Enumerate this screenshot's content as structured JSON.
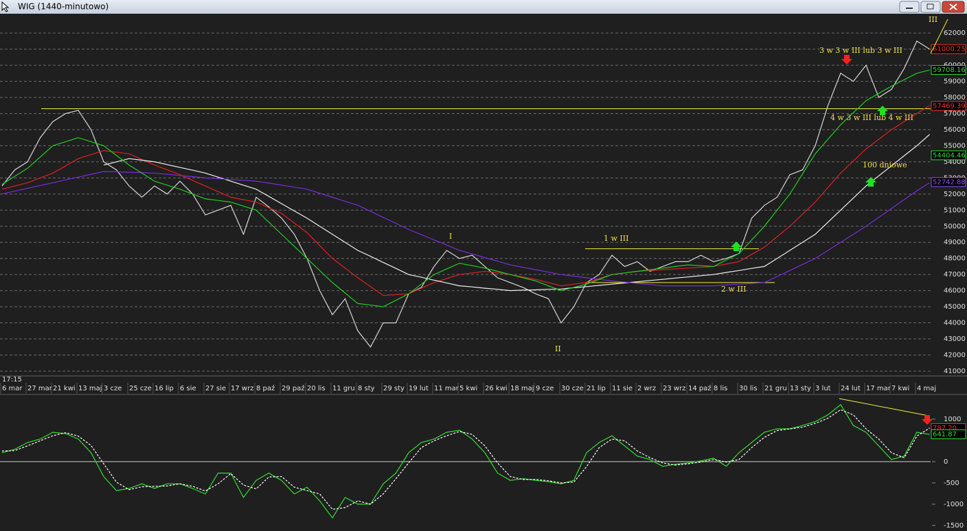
{
  "chart_data": [
    {
      "type": "line",
      "title": "WIG (1440-minutowo)",
      "time_label": "17:15",
      "categories": [
        "6 mar",
        null,
        "27 mar",
        null,
        "21 kwi",
        null,
        "13 maj",
        null,
        "3 cze",
        null,
        "25 cze",
        null,
        "16 lip",
        null,
        "6 sie",
        null,
        "27 sie",
        null,
        "17 wrz",
        null,
        "8 paź",
        null,
        "29 paź",
        null,
        "20 lis",
        null,
        "11 gru",
        null,
        "8 sty",
        null,
        "29 sty",
        null,
        "19 lut",
        null,
        "11 mar",
        null,
        "5 kwi",
        null,
        "26 kwi",
        null,
        "18 maj",
        null,
        "9 cze",
        null,
        "30 cze",
        null,
        "21 lip",
        null,
        "11 sie",
        null,
        "2 wrz",
        null,
        "23 wrz",
        null,
        "14 paź",
        null,
        "8 lis",
        null,
        "30 lis",
        null,
        "21 gru",
        null,
        "13 sty",
        null,
        "3 lut",
        null,
        "24 lut",
        null,
        "17 mar",
        null,
        "7 kwi",
        null,
        "4 maj",
        null
      ],
      "series": [
        {
          "color": "#d8d8d8",
          "values": [
            52500,
            53500,
            54000,
            55500,
            56500,
            57000,
            57200,
            56000,
            54000,
            53500,
            52500,
            51800,
            52500,
            52000,
            52800,
            52000,
            50700,
            51000,
            51300,
            49500,
            51800,
            51200,
            50500,
            49500,
            48000,
            46000,
            44500,
            45500,
            43500,
            42500,
            44000,
            44000,
            45800,
            46200,
            47500,
            48500,
            48000,
            48200,
            47500,
            46800,
            46500,
            46200,
            45800,
            45500,
            44000,
            45000,
            46500,
            47000,
            48200,
            47500,
            47800,
            47200,
            47500,
            47800,
            47800,
            48200,
            47800,
            48000,
            48300,
            50500,
            51300,
            51800,
            53200,
            53500,
            55000,
            57500,
            59500,
            59000,
            60000,
            58000,
            58500,
            59800,
            61500,
            61000
          ]
        },
        {
          "color": "#e02020",
          "values": [
            52300,
            52500,
            52700,
            53000,
            53300,
            53750,
            54200,
            54450,
            54700,
            54600,
            54500,
            54150,
            53800,
            53500,
            53200,
            52850,
            52500,
            52150,
            51800,
            51650,
            51500,
            51150,
            50800,
            50200,
            49600,
            48800,
            48000,
            47400,
            46800,
            46250,
            45700,
            45750,
            45800,
            46150,
            46500,
            46750,
            47000,
            47100,
            47200,
            47100,
            47000,
            46850,
            46700,
            46500,
            46300,
            46400,
            46500,
            46750,
            47000,
            47100,
            47200,
            47250,
            47300,
            47350,
            47400,
            47450,
            47500,
            47650,
            47800,
            48250,
            48700,
            49350,
            50000,
            50750,
            51500,
            52400,
            53300,
            54050,
            54800,
            55400,
            56000,
            56500,
            57000,
            57500
          ]
        },
        {
          "color": "#f0f0f0",
          "values": [
            null,
            null,
            null,
            null,
            null,
            null,
            null,
            null,
            53800,
            54000,
            54200,
            54100,
            54000,
            53830,
            53650,
            53480,
            53300,
            53050,
            52800,
            52550,
            52300,
            51850,
            51400,
            50950,
            50500,
            50000,
            49500,
            49000,
            48500,
            48130,
            47750,
            47380,
            47000,
            46830,
            46650,
            46480,
            46300,
            46230,
            46150,
            46080,
            46000,
            46030,
            46050,
            46080,
            46100,
            46180,
            46250,
            46330,
            46400,
            46480,
            46550,
            46630,
            46700,
            46780,
            46850,
            46930,
            47000,
            47130,
            47250,
            47380,
            47500,
            48000,
            48500,
            49000,
            49500,
            50250,
            51000,
            51750,
            52500,
            53130,
            53750,
            54380,
            55000,
            55700
          ]
        },
        {
          "color": "#7a2be0",
          "values": [
            52000,
            52180,
            52350,
            52530,
            52700,
            52880,
            53050,
            53230,
            53400,
            53380,
            53350,
            53330,
            53300,
            53230,
            53150,
            53080,
            53000,
            52950,
            52900,
            52850,
            52800,
            52680,
            52550,
            52430,
            52300,
            52050,
            51800,
            51550,
            51300,
            50930,
            50550,
            50180,
            49800,
            49480,
            49150,
            48830,
            48500,
            48280,
            48050,
            47830,
            47600,
            47450,
            47300,
            47150,
            47000,
            46900,
            46800,
            46700,
            46600,
            46530,
            46450,
            46380,
            46300,
            46300,
            46300,
            46300,
            46300,
            46350,
            46400,
            46450,
            46500,
            46880,
            47250,
            47630,
            48000,
            48500,
            49000,
            49500,
            50000,
            50550,
            51100,
            51650,
            52200,
            52700
          ]
        },
        {
          "color": "#20d020",
          "values": [
            52600,
            53100,
            53600,
            54300,
            55000,
            55250,
            55500,
            55250,
            55000,
            54400,
            53800,
            53300,
            52800,
            52550,
            52300,
            52000,
            51700,
            51600,
            51500,
            51250,
            51000,
            50250,
            49500,
            48750,
            48000,
            47250,
            46500,
            45850,
            45200,
            45100,
            45000,
            45400,
            45800,
            46400,
            47000,
            47350,
            47700,
            47550,
            47400,
            47200,
            47000,
            46800,
            46600,
            46300,
            46000,
            46200,
            46400,
            46700,
            47000,
            47100,
            47200,
            47300,
            47400,
            47500,
            47600,
            47550,
            47500,
            47900,
            48300,
            49150,
            50000,
            51000,
            52000,
            53250,
            54500,
            55400,
            56300,
            57050,
            57800,
            58250,
            58700,
            59100,
            59500,
            59700
          ]
        }
      ],
      "ylim": [
        40700,
        63200
      ],
      "yticks": [
        41000,
        42000,
        43000,
        44000,
        45000,
        46000,
        47000,
        48000,
        49000,
        50000,
        51000,
        52000,
        53000,
        54000,
        55000,
        56000,
        57000,
        58000,
        59000,
        60000,
        61000,
        62000
      ],
      "grid": true,
      "levels": [
        {
          "value": 57300,
          "color": "#f0f040"
        },
        {
          "value": 48600,
          "color": "#f0f040"
        },
        {
          "value": 46500,
          "color": "#f0f040"
        }
      ],
      "price_tags": [
        {
          "value": 61000.25,
          "color": "#ff3030"
        },
        {
          "value": 59708.16,
          "color": "#30e030"
        },
        {
          "value": 57469.39,
          "color": "#ff3030"
        },
        {
          "value": 54404.46,
          "color": "#30e030"
        },
        {
          "value": 52742.88,
          "color": "#9050ff"
        }
      ],
      "annotations": [
        "I",
        "II",
        "III",
        "1 w III",
        "2 w III",
        "3 w 3 w III lub 3 w III",
        "4 w 3 w III lub 4 w III",
        "100 dniowe"
      ]
    },
    {
      "type": "line",
      "series": [
        {
          "color": "#30e030",
          "values": [
            210,
            290,
            450,
            530,
            690,
            660,
            530,
            210,
            -350,
            -680,
            -630,
            -520,
            -630,
            -520,
            -520,
            -630,
            -760,
            -270,
            -270,
            -840,
            -440,
            -270,
            -440,
            -760,
            -600,
            -920,
            -1320,
            -840,
            -1000,
            -1000,
            -520,
            -270,
            210,
            450,
            530,
            690,
            740,
            530,
            210,
            -270,
            -440,
            -400,
            -440,
            -470,
            -520,
            -440,
            210,
            450,
            610,
            370,
            130,
            50,
            -110,
            -60,
            -30,
            20,
            80,
            -110,
            210,
            450,
            690,
            770,
            770,
            850,
            940,
            1100,
            1340,
            850,
            690,
            370,
            50,
            130,
            690,
            640
          ]
        },
        {
          "color": "#ffffff",
          "dashed": true,
          "values": [
            250,
            260,
            370,
            490,
            610,
            680,
            600,
            380,
            -50,
            -480,
            -660,
            -590,
            -580,
            -570,
            -520,
            -580,
            -690,
            -520,
            -280,
            -550,
            -640,
            -360,
            -350,
            -600,
            -680,
            -760,
            -1120,
            -1080,
            -920,
            -1000,
            -760,
            -400,
            -30,
            330,
            490,
            610,
            710,
            640,
            370,
            -30,
            -350,
            -420,
            -420,
            -450,
            -500,
            -480,
            -120,
            330,
            530,
            490,
            250,
            90,
            -30,
            -80,
            -50,
            -10,
            50,
            -10,
            50,
            330,
            570,
            730,
            770,
            810,
            900,
            1020,
            1220,
            1100,
            770,
            530,
            210,
            90,
            600,
            790
          ]
        }
      ],
      "ylim": [
        -1630,
        1530
      ],
      "yticks": [
        -1500,
        -1000,
        -500,
        0,
        1000
      ],
      "zero_line": true,
      "price_tags": [
        {
          "value": 787.2,
          "label": "787.20",
          "color": "#ff3030"
        },
        {
          "value": 641.87,
          "color": "#30e030"
        }
      ]
    }
  ]
}
